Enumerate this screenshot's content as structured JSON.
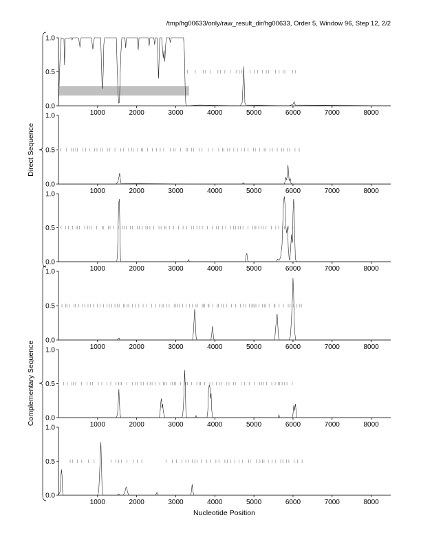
{
  "header": {
    "title": "/tmp/hg00633/only/raw_result_dir/hg00633, Order 5, Window 96, Step 12, 2/2"
  },
  "chart_data": {
    "type": "line",
    "xlabel": "Nucleotide Position",
    "xlim": [
      0,
      8500
    ],
    "ylim": [
      0,
      1
    ],
    "x_ticks": [
      "1000",
      "2000",
      "3000",
      "4000",
      "5000",
      "6000",
      "7000",
      "8000"
    ],
    "y_ticks": [
      "0.0",
      "0.5",
      "1.0"
    ],
    "groups": [
      {
        "label": "Direct Sequence",
        "panels": [
          1,
          2,
          3
        ]
      },
      {
        "label": "Complementary Sequence",
        "panels": [
          4,
          5,
          6
        ]
      }
    ],
    "panels": [
      {
        "id": 1,
        "line": [
          [
            0,
            0.02
          ],
          [
            40,
            0.7
          ],
          [
            70,
            1.0
          ],
          [
            140,
            0.98
          ],
          [
            155,
            0.6
          ],
          [
            170,
            0.99
          ],
          [
            330,
            1.0
          ],
          [
            350,
            0.97
          ],
          [
            365,
            1.0
          ],
          [
            500,
            1.0
          ],
          [
            520,
            0.98
          ],
          [
            540,
            0.9
          ],
          [
            550,
            0.86
          ],
          [
            560,
            0.96
          ],
          [
            580,
            1.0
          ],
          [
            840,
            1.0
          ],
          [
            860,
            0.92
          ],
          [
            880,
            0.83
          ],
          [
            900,
            0.94
          ],
          [
            920,
            1.0
          ],
          [
            1080,
            1.0
          ],
          [
            1100,
            0.6
          ],
          [
            1115,
            0.3
          ],
          [
            1130,
            0.25
          ],
          [
            1145,
            0.5
          ],
          [
            1160,
            0.9
          ],
          [
            1180,
            1.0
          ],
          [
            1480,
            1.0
          ],
          [
            1500,
            0.6
          ],
          [
            1520,
            0.25
          ],
          [
            1540,
            0.04
          ],
          [
            1560,
            0.05
          ],
          [
            1580,
            0.5
          ],
          [
            1600,
            0.8
          ],
          [
            1620,
            1.0
          ],
          [
            1700,
            1.0
          ],
          [
            1720,
            0.85
          ],
          [
            1740,
            1.0
          ],
          [
            2020,
            1.0
          ],
          [
            2040,
            0.82
          ],
          [
            2060,
            1.0
          ],
          [
            2300,
            1.0
          ],
          [
            2320,
            0.88
          ],
          [
            2340,
            1.0
          ],
          [
            2440,
            1.0
          ],
          [
            2460,
            0.9
          ],
          [
            2480,
            1.0
          ],
          [
            2520,
            1.0
          ],
          [
            2540,
            0.75
          ],
          [
            2560,
            0.4
          ],
          [
            2575,
            0.7
          ],
          [
            2590,
            1.0
          ],
          [
            2640,
            1.0
          ],
          [
            2660,
            0.85
          ],
          [
            2680,
            0.7
          ],
          [
            2700,
            0.82
          ],
          [
            2720,
            0.65
          ],
          [
            2740,
            0.88
          ],
          [
            2760,
            1.0
          ],
          [
            2840,
            1.0
          ],
          [
            2860,
            0.93
          ],
          [
            2880,
            1.0
          ],
          [
            3200,
            1.0
          ],
          [
            3220,
            0.8
          ],
          [
            3240,
            0.3
          ],
          [
            3255,
            0.04
          ],
          [
            3270,
            0.0
          ],
          [
            3600,
            0.01
          ],
          [
            4650,
            0.0
          ],
          [
            4700,
            0.05
          ],
          [
            4720,
            0.3
          ],
          [
            4740,
            0.58
          ],
          [
            4755,
            0.3
          ],
          [
            4770,
            0.04
          ],
          [
            4800,
            0.01
          ],
          [
            5900,
            0.0
          ],
          [
            6000,
            0.02
          ],
          [
            6030,
            0.06
          ],
          [
            6060,
            0.01
          ],
          [
            8500,
            0.0
          ]
        ],
        "ticks": [],
        "has_bar": true,
        "bar": {
          "x0": 0,
          "x1": 3340,
          "y0": 0.15,
          "y1": 0.29
        }
      },
      {
        "id": 2,
        "line": [
          [
            0,
            0.0
          ],
          [
            1470,
            0.0
          ],
          [
            1520,
            0.03
          ],
          [
            1550,
            0.11
          ],
          [
            1565,
            0.16
          ],
          [
            1580,
            0.08
          ],
          [
            1600,
            0.01
          ],
          [
            3400,
            0.0
          ],
          [
            4700,
            0.0
          ],
          [
            4730,
            0.02
          ],
          [
            4760,
            0.0
          ],
          [
            5780,
            0.0
          ],
          [
            5800,
            0.05
          ],
          [
            5815,
            0.1
          ],
          [
            5830,
            0.06
          ],
          [
            5850,
            0.1
          ],
          [
            5870,
            0.28
          ],
          [
            5885,
            0.18
          ],
          [
            5900,
            0.05
          ],
          [
            5930,
            0.08
          ],
          [
            5950,
            0.01
          ],
          [
            6000,
            0.0
          ],
          [
            8500,
            0.0
          ]
        ],
        "ticks": [],
        "has_bar": false
      },
      {
        "id": 3,
        "line": [
          [
            0,
            0.0
          ],
          [
            1490,
            0.0
          ],
          [
            1510,
            0.1
          ],
          [
            1525,
            0.5
          ],
          [
            1540,
            0.85
          ],
          [
            1555,
            0.92
          ],
          [
            1570,
            0.55
          ],
          [
            1585,
            0.05
          ],
          [
            1600,
            0.0
          ],
          [
            3300,
            0.0
          ],
          [
            3330,
            0.03
          ],
          [
            3350,
            0.0
          ],
          [
            4780,
            0.0
          ],
          [
            4800,
            0.1
          ],
          [
            4820,
            0.12
          ],
          [
            4840,
            0.02
          ],
          [
            4860,
            0.0
          ],
          [
            5580,
            0.0
          ],
          [
            5600,
            0.04
          ],
          [
            5640,
            0.02
          ],
          [
            5680,
            0.06
          ],
          [
            5720,
            0.25
          ],
          [
            5740,
            0.6
          ],
          [
            5760,
            0.9
          ],
          [
            5780,
            0.96
          ],
          [
            5800,
            0.8
          ],
          [
            5820,
            0.5
          ],
          [
            5840,
            0.42
          ],
          [
            5860,
            0.52
          ],
          [
            5880,
            0.2
          ],
          [
            5900,
            0.05
          ],
          [
            5920,
            0.02
          ],
          [
            5940,
            0.2
          ],
          [
            5960,
            0.4
          ],
          [
            5975,
            0.28
          ],
          [
            5990,
            0.3
          ],
          [
            6000,
            0.7
          ],
          [
            6015,
            0.92
          ],
          [
            6030,
            0.8
          ],
          [
            6045,
            0.35
          ],
          [
            6060,
            0.05
          ],
          [
            6080,
            0.0
          ],
          [
            8500,
            0.0
          ]
        ],
        "ticks": [],
        "has_bar": false
      },
      {
        "id": 4,
        "line": [
          [
            0,
            0.0
          ],
          [
            1500,
            0.0
          ],
          [
            1530,
            0.02
          ],
          [
            1550,
            0.03
          ],
          [
            1570,
            0.0
          ],
          [
            3430,
            0.0
          ],
          [
            3450,
            0.1
          ],
          [
            3470,
            0.3
          ],
          [
            3485,
            0.45
          ],
          [
            3500,
            0.3
          ],
          [
            3520,
            0.05
          ],
          [
            3540,
            0.0
          ],
          [
            3900,
            0.0
          ],
          [
            3920,
            0.08
          ],
          [
            3940,
            0.2
          ],
          [
            3955,
            0.12
          ],
          [
            3970,
            0.02
          ],
          [
            3990,
            0.0
          ],
          [
            5520,
            0.0
          ],
          [
            5540,
            0.06
          ],
          [
            5560,
            0.2
          ],
          [
            5580,
            0.32
          ],
          [
            5595,
            0.38
          ],
          [
            5610,
            0.22
          ],
          [
            5630,
            0.04
          ],
          [
            5650,
            0.0
          ],
          [
            5900,
            0.0
          ],
          [
            5930,
            0.05
          ],
          [
            5950,
            0.2
          ],
          [
            5970,
            0.42
          ],
          [
            5985,
            0.6
          ],
          [
            6000,
            0.9
          ],
          [
            6015,
            0.7
          ],
          [
            6030,
            0.32
          ],
          [
            6050,
            0.08
          ],
          [
            6070,
            0.0
          ],
          [
            8500,
            0.0
          ]
        ],
        "ticks": [],
        "has_bar": false
      },
      {
        "id": 5,
        "line": [
          [
            0,
            0.0
          ],
          [
            1480,
            0.0
          ],
          [
            1510,
            0.05
          ],
          [
            1530,
            0.22
          ],
          [
            1545,
            0.42
          ],
          [
            1560,
            0.22
          ],
          [
            1575,
            0.05
          ],
          [
            1600,
            0.0
          ],
          [
            2580,
            0.0
          ],
          [
            2600,
            0.08
          ],
          [
            2620,
            0.24
          ],
          [
            2635,
            0.28
          ],
          [
            2650,
            0.14
          ],
          [
            2665,
            0.2
          ],
          [
            2680,
            0.1
          ],
          [
            2700,
            0.04
          ],
          [
            2720,
            0.0
          ],
          [
            3160,
            0.0
          ],
          [
            3180,
            0.05
          ],
          [
            3200,
            0.2
          ],
          [
            3215,
            0.45
          ],
          [
            3230,
            0.7
          ],
          [
            3245,
            0.42
          ],
          [
            3260,
            0.1
          ],
          [
            3280,
            0.0
          ],
          [
            3500,
            0.0
          ],
          [
            3520,
            0.03
          ],
          [
            3540,
            0.0
          ],
          [
            3800,
            0.0
          ],
          [
            3820,
            0.1
          ],
          [
            3840,
            0.42
          ],
          [
            3860,
            0.48
          ],
          [
            3875,
            0.44
          ],
          [
            3890,
            0.28
          ],
          [
            3905,
            0.36
          ],
          [
            3920,
            0.12
          ],
          [
            3940,
            0.02
          ],
          [
            3960,
            0.0
          ],
          [
            5620,
            0.0
          ],
          [
            5640,
            0.04
          ],
          [
            5660,
            0.0
          ],
          [
            5980,
            0.0
          ],
          [
            6000,
            0.05
          ],
          [
            6020,
            0.18
          ],
          [
            6035,
            0.1
          ],
          [
            6050,
            0.16
          ],
          [
            6065,
            0.2
          ],
          [
            6080,
            0.08
          ],
          [
            6100,
            0.0
          ],
          [
            8500,
            0.0
          ]
        ],
        "ticks": [],
        "has_bar": false
      },
      {
        "id": 6,
        "line": [
          [
            0,
            0.0
          ],
          [
            40,
            0.05
          ],
          [
            60,
            0.25
          ],
          [
            75,
            0.38
          ],
          [
            90,
            0.3
          ],
          [
            105,
            0.05
          ],
          [
            120,
            0.0
          ],
          [
            1000,
            0.0
          ],
          [
            1030,
            0.05
          ],
          [
            1055,
            0.35
          ],
          [
            1070,
            0.62
          ],
          [
            1085,
            0.78
          ],
          [
            1100,
            0.45
          ],
          [
            1115,
            0.1
          ],
          [
            1130,
            0.0
          ],
          [
            1500,
            0.0
          ],
          [
            1540,
            0.02
          ],
          [
            1580,
            0.0
          ],
          [
            1660,
            0.0
          ],
          [
            1700,
            0.05
          ],
          [
            1730,
            0.12
          ],
          [
            1750,
            0.1
          ],
          [
            1770,
            0.04
          ],
          [
            1800,
            0.0
          ],
          [
            2480,
            0.0
          ],
          [
            2500,
            0.02
          ],
          [
            2520,
            0.04
          ],
          [
            2540,
            0.01
          ],
          [
            2560,
            0.0
          ],
          [
            3380,
            0.0
          ],
          [
            3400,
            0.05
          ],
          [
            3420,
            0.16
          ],
          [
            3440,
            0.06
          ],
          [
            3460,
            0.0
          ],
          [
            8500,
            0.0
          ]
        ],
        "ticks": [],
        "has_bar": false
      }
    ]
  }
}
